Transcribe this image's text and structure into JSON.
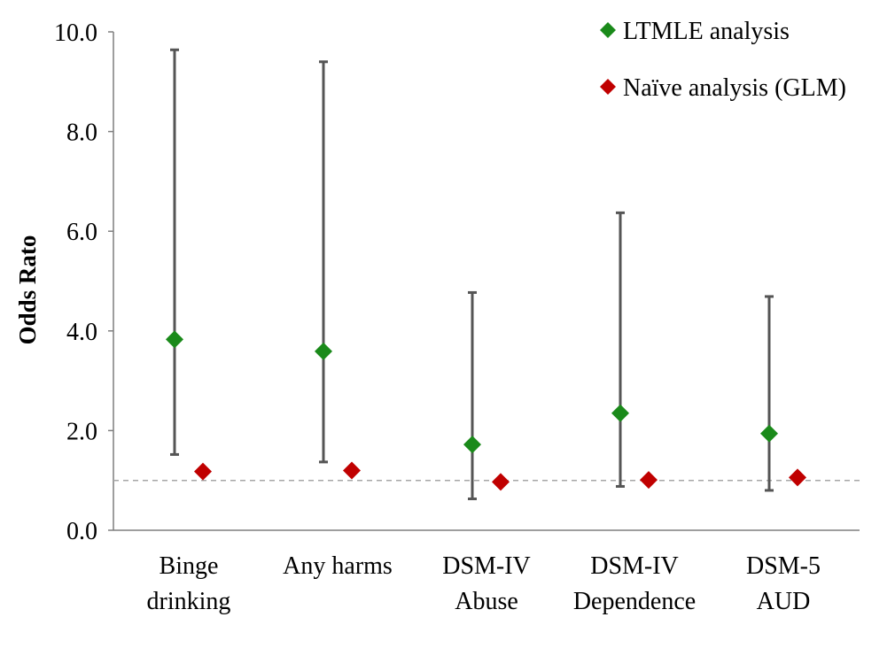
{
  "chart_data": {
    "type": "scatter",
    "title": "",
    "xlabel": "",
    "ylabel": "Odds Rato",
    "ylim": [
      0,
      10
    ],
    "yticks": [
      0,
      2,
      4,
      6,
      8,
      10
    ],
    "ytick_labels": [
      "0.0",
      "2.0",
      "4.0",
      "6.0",
      "8.0",
      "10.0"
    ],
    "categories": [
      [
        "Binge",
        "drinking"
      ],
      [
        "Any harms"
      ],
      [
        "DSM-IV",
        "Abuse"
      ],
      [
        "DSM-IV",
        "Dependence"
      ],
      [
        "DSM-5",
        "AUD"
      ]
    ],
    "series": [
      {
        "name": "LTMLE analysis",
        "color": "#1a8a1a",
        "marker": "diamond",
        "values": [
          3.83,
          3.59,
          1.72,
          2.35,
          1.94
        ],
        "ci_low": [
          1.52,
          1.37,
          0.63,
          0.88,
          0.8
        ],
        "ci_high": [
          9.64,
          9.4,
          4.77,
          6.37,
          4.69
        ]
      },
      {
        "name": "Naïve analysis (GLM)",
        "color": "#c00000",
        "marker": "diamond",
        "values": [
          1.18,
          1.2,
          0.97,
          1.01,
          1.06
        ]
      }
    ],
    "reference_line": {
      "y": 1.0,
      "style": "dashed",
      "color": "#a6a6a6"
    },
    "error_bar_color": "#555555",
    "grid": false,
    "legend_position": "top-right"
  }
}
